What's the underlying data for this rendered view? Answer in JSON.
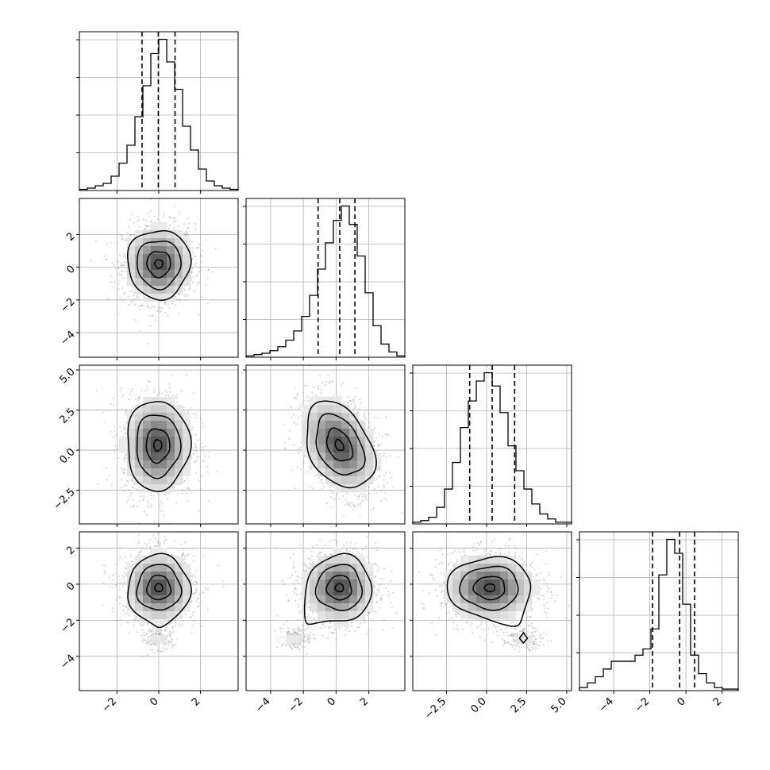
{
  "chart_data": {
    "type": "corner",
    "dims": 4,
    "title": "",
    "axis_labels": [
      "",
      "",
      "",
      ""
    ],
    "ranges": [
      [
        -3.8,
        3.8
      ],
      [
        -5.5,
        4.2
      ],
      [
        -4.6,
        5.3
      ],
      [
        -5.9,
        2.9
      ]
    ],
    "quantiles": [
      [
        -0.8,
        -0.02,
        0.78
      ],
      [
        -1.1,
        0.22,
        1.15
      ],
      [
        -1.05,
        0.35,
        1.75
      ],
      [
        -1.85,
        -0.35,
        0.48
      ]
    ],
    "histograms": [
      {
        "edges_from": -3.8,
        "bin_width": 0.38,
        "counts": [
          1,
          2,
          4,
          6,
          12,
          23,
          38,
          62,
          88,
          115,
          127,
          108,
          85,
          54,
          34,
          18,
          8,
          4,
          2,
          1
        ]
      },
      {
        "edges_from": -5.5,
        "bin_width": 0.485,
        "counts": [
          1,
          2,
          3,
          5,
          8,
          13,
          20,
          31,
          47,
          67,
          87,
          104,
          115,
          101,
          77,
          49,
          24,
          10,
          4,
          1
        ]
      },
      {
        "edges_from": -4.6,
        "bin_width": 0.495,
        "counts": [
          1,
          2,
          4,
          10,
          21,
          37,
          58,
          74,
          86,
          91,
          83,
          67,
          47,
          32,
          21,
          12,
          6,
          3,
          1,
          1
        ]
      },
      {
        "edges_from": -5.9,
        "bin_width": 0.44,
        "counts": [
          2,
          5,
          9,
          14,
          19,
          19,
          19,
          23,
          27,
          40,
          75,
          98,
          89,
          56,
          23,
          11,
          5,
          2,
          1,
          1
        ]
      }
    ],
    "ticks": [
      [
        -2,
        0,
        2
      ],
      [
        -4,
        -2,
        0,
        2
      ],
      [
        -2.5,
        0.0,
        2.5,
        5.0
      ],
      [
        -4,
        -2,
        0,
        2
      ]
    ],
    "tick_labels": [
      [
        "−2",
        "0",
        "2"
      ],
      [
        "−4",
        "−2",
        "0",
        "2"
      ],
      [
        "−2.5",
        "0.0",
        "2.5",
        "5.0"
      ],
      [
        "−4",
        "−2",
        "0",
        "2"
      ]
    ],
    "pairs": [
      {
        "row": 1,
        "col": 0,
        "center": [
          0.0,
          0.2
        ],
        "sigma": [
          0.75,
          1.05
        ],
        "rho": 0.0,
        "secondary": null
      },
      {
        "row": 2,
        "col": 0,
        "center": [
          -0.05,
          0.3
        ],
        "sigma": [
          0.75,
          1.4
        ],
        "rho": 0.0,
        "secondary": null
      },
      {
        "row": 2,
        "col": 1,
        "center": [
          0.2,
          0.3
        ],
        "sigma": [
          1.05,
          1.35
        ],
        "rho": -0.35,
        "secondary": null
      },
      {
        "row": 3,
        "col": 0,
        "center": [
          0.0,
          -0.2
        ],
        "sigma": [
          0.75,
          0.9
        ],
        "rho": 0.0,
        "secondary": [
          0.0,
          -3.0
        ]
      },
      {
        "row": 3,
        "col": 1,
        "center": [
          0.2,
          -0.2
        ],
        "sigma": [
          1.0,
          0.9
        ],
        "rho": 0.0,
        "secondary": [
          -2.5,
          -3.0
        ]
      },
      {
        "row": 3,
        "col": 2,
        "center": [
          0.2,
          -0.2
        ],
        "sigma": [
          1.3,
          0.85
        ],
        "rho": 0.0,
        "secondary": [
          2.3,
          -3.0
        ]
      }
    ],
    "grid": true,
    "legend": "none"
  }
}
